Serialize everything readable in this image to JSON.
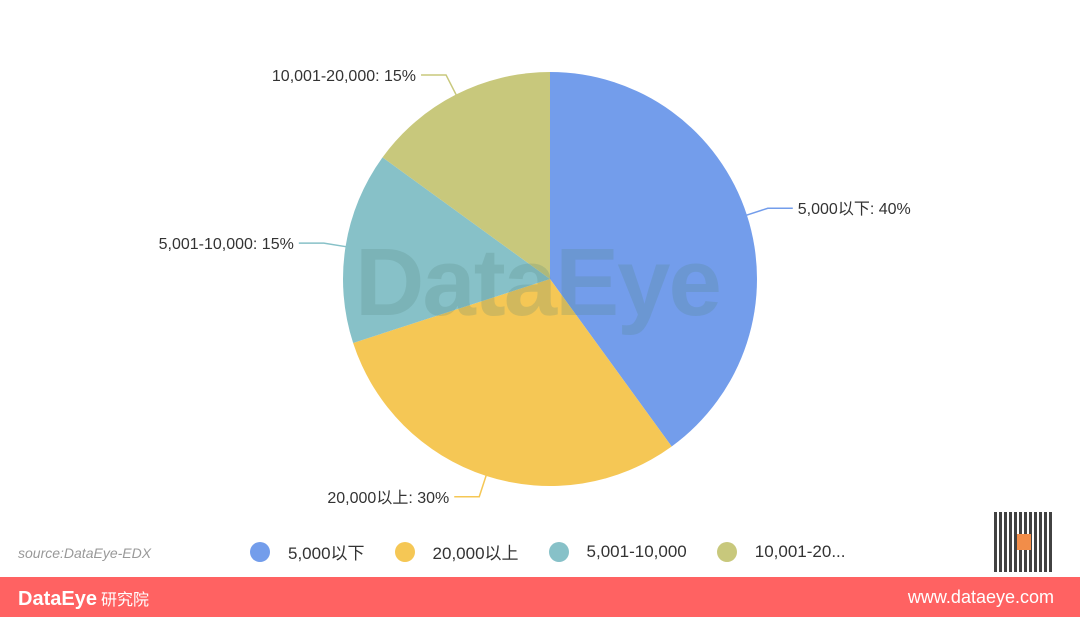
{
  "chart_data": {
    "type": "pie",
    "categories": [
      "5,000以下",
      "20,000以上",
      "5,001-10,000",
      "10,001-20,000"
    ],
    "values": [
      40,
      30,
      15,
      15
    ],
    "data_labels": [
      "5,000以下: 40%",
      "20,000以上: 30%",
      "5,001-10,000: 15%",
      "10,001-20,000: 15%"
    ],
    "colors": [
      "#739deb",
      "#f5c755",
      "#87c1c8",
      "#c8c87c"
    ],
    "legend": {
      "placement": "bottom",
      "labels": [
        "5,000以下",
        "20,000以上",
        "5,001-10,000",
        "10,001-20..."
      ]
    },
    "start": "top",
    "direction": "clockwise"
  },
  "watermark": "DataEye",
  "source": "source:DataEye-EDX",
  "footer": {
    "brand": "DataEye",
    "brand_suffix": "研究院",
    "website": "www.dataeye.com"
  }
}
